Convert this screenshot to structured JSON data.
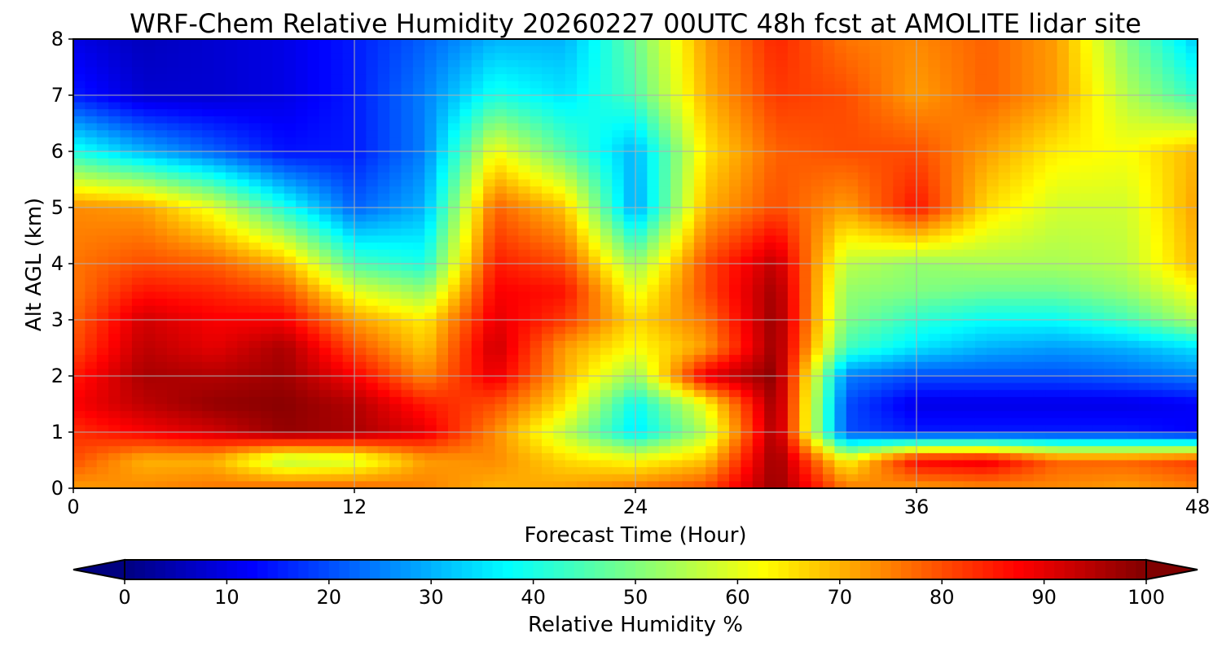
{
  "chart_data": {
    "type": "heatmap",
    "title": "WRF-Chem Relative Humidity 20260227 00UTC 48h fcst at AMOLITE lidar site",
    "xlabel": "Forecast Time (Hour)",
    "ylabel": "Alt AGL (km)",
    "xlim": [
      0,
      48
    ],
    "ylim": [
      0,
      8
    ],
    "xticks": [
      0,
      12,
      24,
      36,
      48
    ],
    "yticks": [
      0,
      1,
      2,
      3,
      4,
      5,
      6,
      7,
      8
    ],
    "grid": true,
    "colormap": "jet",
    "colorbar": {
      "label": "Relative Humidity %",
      "ticks": [
        0,
        10,
        20,
        30,
        40,
        50,
        60,
        70,
        80,
        90,
        100
      ],
      "range": [
        0,
        100
      ],
      "extend": "both",
      "orientation": "horizontal",
      "placement": "bottom"
    },
    "x": [
      0,
      3,
      6,
      9,
      12,
      15,
      18,
      21,
      24,
      27,
      30,
      33,
      36,
      39,
      42,
      45,
      48
    ],
    "y": [
      0,
      0.5,
      1,
      1.5,
      2,
      2.5,
      3,
      3.5,
      4,
      5,
      6,
      7,
      8
    ],
    "z": [
      [
        72,
        74,
        76,
        78,
        78,
        75,
        70,
        72,
        76,
        80,
        98,
        76,
        72,
        74,
        74,
        72,
        75
      ],
      [
        80,
        70,
        70,
        55,
        58,
        72,
        74,
        66,
        62,
        68,
        98,
        62,
        88,
        90,
        78,
        78,
        82
      ],
      [
        83,
        88,
        92,
        98,
        96,
        90,
        74,
        56,
        35,
        55,
        97,
        20,
        15,
        15,
        15,
        15,
        12
      ],
      [
        88,
        94,
        98,
        99,
        95,
        85,
        80,
        65,
        38,
        62,
        98,
        20,
        10,
        10,
        10,
        10,
        12
      ],
      [
        85,
        96,
        95,
        97,
        88,
        74,
        90,
        70,
        52,
        90,
        99,
        25,
        20,
        20,
        20,
        22,
        25
      ],
      [
        80,
        94,
        90,
        96,
        80,
        68,
        93,
        72,
        62,
        72,
        98,
        44,
        35,
        30,
        28,
        30,
        35
      ],
      [
        78,
        92,
        88,
        88,
        72,
        64,
        90,
        82,
        66,
        76,
        98,
        50,
        42,
        38,
        38,
        44,
        55
      ],
      [
        76,
        86,
        84,
        80,
        60,
        52,
        88,
        86,
        60,
        80,
        97,
        52,
        50,
        48,
        48,
        52,
        62
      ],
      [
        76,
        80,
        78,
        70,
        45,
        40,
        85,
        80,
        52,
        80,
        94,
        56,
        52,
        54,
        54,
        56,
        70
      ],
      [
        74,
        72,
        60,
        40,
        22,
        30,
        78,
        68,
        28,
        70,
        80,
        72,
        86,
        66,
        58,
        58,
        72
      ],
      [
        40,
        30,
        22,
        14,
        15,
        25,
        62,
        46,
        30,
        65,
        78,
        80,
        80,
        72,
        64,
        62,
        70
      ],
      [
        15,
        8,
        8,
        10,
        15,
        25,
        40,
        35,
        45,
        70,
        82,
        80,
        72,
        78,
        72,
        55,
        42
      ],
      [
        10,
        6,
        8,
        10,
        15,
        22,
        30,
        30,
        48,
        72,
        84,
        76,
        74,
        78,
        72,
        50,
        32
      ]
    ]
  }
}
